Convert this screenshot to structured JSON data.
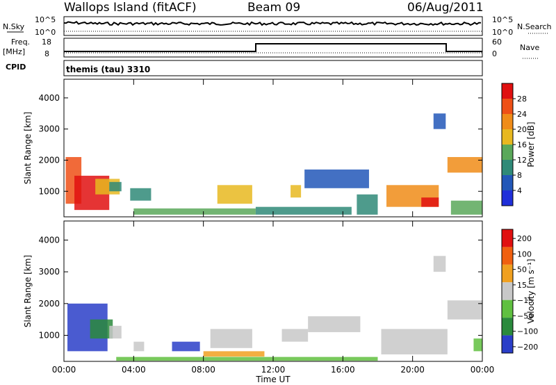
{
  "header": {
    "station": "Wallops Island (fitACF)",
    "beam": "Beam 09",
    "date": "06/Aug/2011"
  },
  "left_labels": {
    "nsky": "N.Sky",
    "freq": "Freq.",
    "mhz": "[MHz]",
    "cpid": "CPID"
  },
  "right_labels": {
    "nsearch": "N.Search",
    "nave": "Nave"
  },
  "strip1": {
    "left_ticks": [
      "10^5",
      "10^0"
    ],
    "right_ticks": [
      "10^5",
      "10^0"
    ]
  },
  "strip2": {
    "left_ticks": [
      "18",
      "8"
    ],
    "right_ticks": [
      "60",
      "0"
    ]
  },
  "cpid_text": "themis (tau) 3310",
  "colors": {
    "power": [
      "#1f2fd9",
      "#2257b8",
      "#2f8a78",
      "#5aa85a",
      "#e8b820",
      "#f08c18",
      "#ee5016",
      "#e01010"
    ],
    "velocity": [
      "#2a3ec8",
      "#2a8a3c",
      "#60c040",
      "#c8c8c8",
      "#f0a020",
      "#f06010",
      "#e01010"
    ]
  },
  "chart_data": [
    {
      "type": "heatmap",
      "title": "",
      "xlabel": "",
      "ylabel": "Slant Range [km]",
      "colorbar_label": "Power [dB]",
      "colorbar_ticks": [
        "4",
        "8",
        "12",
        "16",
        "20",
        "24",
        "28"
      ],
      "ylim": [
        180,
        4600
      ],
      "yticks": [
        "1000",
        "2000",
        "3000",
        "4000"
      ],
      "xlim": [
        "00:00",
        "24:00"
      ],
      "regions": [
        {
          "t0": 0.1,
          "t1": 1.0,
          "r0": 600,
          "r1": 2100,
          "level": 6
        },
        {
          "t0": 0.6,
          "t1": 2.6,
          "r0": 400,
          "r1": 1500,
          "level": 7
        },
        {
          "t0": 1.8,
          "t1": 3.2,
          "r0": 900,
          "r1": 1400,
          "level": 4
        },
        {
          "t0": 2.6,
          "t1": 3.3,
          "r0": 1000,
          "r1": 1300,
          "level": 2
        },
        {
          "t0": 3.8,
          "t1": 5.0,
          "r0": 700,
          "r1": 1100,
          "level": 2
        },
        {
          "t0": 4.0,
          "t1": 11.0,
          "r0": 250,
          "r1": 450,
          "level": 3
        },
        {
          "t0": 8.8,
          "t1": 10.8,
          "r0": 600,
          "r1": 1200,
          "level": 4
        },
        {
          "t0": 11.0,
          "t1": 16.5,
          "r0": 250,
          "r1": 500,
          "level": 2
        },
        {
          "t0": 13.0,
          "t1": 13.6,
          "r0": 800,
          "r1": 1200,
          "level": 4
        },
        {
          "t0": 13.8,
          "t1": 17.5,
          "r0": 1100,
          "r1": 1700,
          "level": 1
        },
        {
          "t0": 16.8,
          "t1": 18.0,
          "r0": 250,
          "r1": 900,
          "level": 2
        },
        {
          "t0": 18.5,
          "t1": 21.5,
          "r0": 500,
          "r1": 1200,
          "level": 5
        },
        {
          "t0": 20.5,
          "t1": 21.5,
          "r0": 500,
          "r1": 800,
          "level": 7
        },
        {
          "t0": 21.2,
          "t1": 21.9,
          "r0": 3000,
          "r1": 3500,
          "level": 1
        },
        {
          "t0": 22.0,
          "t1": 24.0,
          "r0": 1600,
          "r1": 2100,
          "level": 5
        },
        {
          "t0": 22.2,
          "t1": 24.0,
          "r0": 250,
          "r1": 700,
          "level": 3
        }
      ]
    },
    {
      "type": "heatmap",
      "title": "",
      "xlabel": "Time UT",
      "ylabel": "Slant Range [km]",
      "colorbar_label": "Velocity [m s⁻¹]",
      "colorbar_ticks": [
        "200",
        "100",
        "50",
        "15",
        "−15",
        "−50",
        "−100",
        "−200"
      ],
      "ylim": [
        180,
        4600
      ],
      "yticks": [
        "1000",
        "2000",
        "3000",
        "4000"
      ],
      "xlim": [
        "00:00",
        "24:00"
      ],
      "xticks": [
        "00:00",
        "04:00",
        "08:00",
        "12:00",
        "16:00",
        "20:00",
        "00:00"
      ],
      "regions": [
        {
          "t0": 0.2,
          "t1": 2.5,
          "r0": 500,
          "r1": 2000,
          "level": 0
        },
        {
          "t0": 1.5,
          "t1": 2.8,
          "r0": 900,
          "r1": 1500,
          "level": 1
        },
        {
          "t0": 2.6,
          "t1": 3.3,
          "r0": 900,
          "r1": 1300,
          "level": 3
        },
        {
          "t0": 4.0,
          "t1": 4.6,
          "r0": 500,
          "r1": 800,
          "level": 3
        },
        {
          "t0": 6.2,
          "t1": 7.8,
          "r0": 500,
          "r1": 800,
          "level": 0
        },
        {
          "t0": 3.0,
          "t1": 18.0,
          "r0": 200,
          "r1": 320,
          "level": 2
        },
        {
          "t0": 8.0,
          "t1": 11.5,
          "r0": 330,
          "r1": 500,
          "level": 4
        },
        {
          "t0": 8.4,
          "t1": 10.8,
          "r0": 600,
          "r1": 1200,
          "level": 3
        },
        {
          "t0": 12.5,
          "t1": 14.0,
          "r0": 800,
          "r1": 1200,
          "level": 3
        },
        {
          "t0": 14.0,
          "t1": 17.0,
          "r0": 1100,
          "r1": 1600,
          "level": 3
        },
        {
          "t0": 18.2,
          "t1": 22.0,
          "r0": 400,
          "r1": 1200,
          "level": 3
        },
        {
          "t0": 21.2,
          "t1": 21.9,
          "r0": 3000,
          "r1": 3500,
          "level": 3
        },
        {
          "t0": 22.0,
          "t1": 24.0,
          "r0": 1500,
          "r1": 2100,
          "level": 3
        },
        {
          "t0": 23.5,
          "t1": 24.0,
          "r0": 500,
          "r1": 900,
          "level": 2
        }
      ]
    }
  ]
}
